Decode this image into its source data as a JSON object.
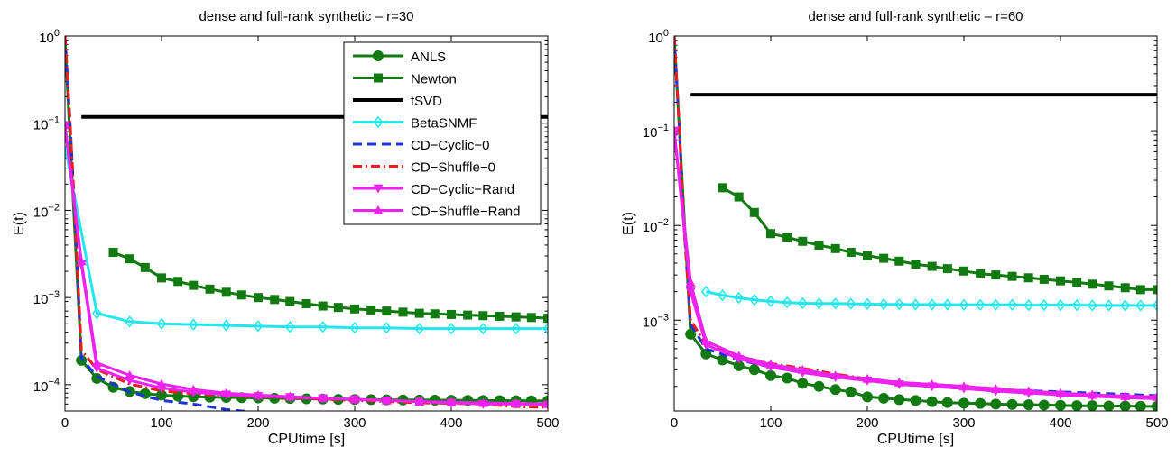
{
  "chart_data": [
    {
      "type": "line",
      "title": "dense and full-rank synthetic – r=30",
      "xlabel": "CPUtime [s]",
      "ylabel": "E(t)",
      "xlim": [
        0,
        500
      ],
      "ylim": [
        5e-05,
        1
      ],
      "yscale": "log",
      "x_ticks": [
        "0",
        "100",
        "200",
        "300",
        "400",
        "500"
      ],
      "y_ticks": [
        {
          "base": "10",
          "exp": "0"
        },
        {
          "base": "10",
          "exp": "−1"
        },
        {
          "base": "10",
          "exp": "−2"
        },
        {
          "base": "10",
          "exp": "−3"
        },
        {
          "base": "10",
          "exp": "−4"
        }
      ],
      "legend_position": "top-right",
      "series": [
        {
          "name": "ANLS",
          "x": [
            0,
            17,
            33,
            50,
            67,
            83,
            100,
            117,
            133,
            150,
            167,
            183,
            200,
            217,
            233,
            250,
            267,
            283,
            300,
            317,
            333,
            350,
            367,
            383,
            400,
            417,
            433,
            450,
            467,
            483,
            500
          ],
          "y": [
            0.9,
            0.00019,
            0.000118,
            9.35e-05,
            8.36e-05,
            7.9e-05,
            7.6e-05,
            7.4e-05,
            7.3e-05,
            7.2e-05,
            7.15e-05,
            7.1e-05,
            7.05e-05,
            7e-05,
            6.95e-05,
            6.9e-05,
            6.85e-05,
            6.8e-05,
            6.78e-05,
            6.75e-05,
            6.72e-05,
            6.7e-05,
            6.68e-05,
            6.66e-05,
            6.64e-05,
            6.62e-05,
            6.6e-05,
            6.58e-05,
            6.56e-05,
            6.54e-05,
            6.52e-05
          ]
        },
        {
          "name": "Newton",
          "x": [
            50,
            67,
            83,
            100,
            117,
            133,
            150,
            167,
            183,
            200,
            217,
            233,
            250,
            267,
            283,
            300,
            317,
            333,
            350,
            367,
            383,
            400,
            417,
            433,
            450,
            467,
            483,
            500
          ],
          "y": [
            0.0033,
            0.00278,
            0.00221,
            0.00168,
            0.00153,
            0.00138,
            0.00125,
            0.00115,
            0.00107,
            0.001,
            0.00095,
            0.0009,
            0.00085,
            0.0008,
            0.00077,
            0.00074,
            0.00072,
            0.0007,
            0.00068,
            0.00066,
            0.00065,
            0.00064,
            0.00063,
            0.00062,
            0.00061,
            0.0006,
            0.00059,
            0.00058
          ]
        },
        {
          "name": "tSVD",
          "x": [
            17,
            500
          ],
          "y": [
            0.118,
            0.118
          ]
        },
        {
          "name": "BetaSNMF",
          "x": [
            0,
            33,
            67,
            100,
            133,
            167,
            200,
            233,
            267,
            300,
            333,
            367,
            400,
            433,
            467,
            500
          ],
          "y": [
            0.055,
            0.00066,
            0.00053,
            0.0005,
            0.00049,
            0.00048,
            0.00047,
            0.00046,
            0.00046,
            0.00045,
            0.00045,
            0.00044,
            0.00044,
            0.00044,
            0.00044,
            0.00044
          ]
        },
        {
          "name": "CD−Cyclic−0",
          "x": [
            0,
            5,
            10,
            17,
            33,
            67,
            100,
            133,
            167,
            200,
            233,
            267,
            300,
            333,
            367,
            400,
            433,
            467,
            500
          ],
          "y": [
            1,
            0.12,
            0.01,
            0.0002,
            0.000125,
            8.25e-05,
            6.6e-05,
            6e-05,
            5.2e-05,
            4.8e-05,
            4.7e-05,
            3.9e-05,
            3.4e-05,
            3.4e-05,
            3.4e-05,
            3.4e-05,
            3.4e-05,
            3.4e-05,
            3.4e-05
          ]
        },
        {
          "name": "CD−Shuffle−0",
          "x": [
            0,
            5,
            10,
            17,
            33,
            67,
            100,
            133,
            167,
            200,
            233,
            267,
            300,
            333,
            367,
            400,
            433,
            467,
            500
          ],
          "y": [
            1,
            0.12,
            0.01,
            0.00025,
            0.00015,
            0.000102,
            8.5e-05,
            7.9e-05,
            7.5e-05,
            7.3e-05,
            7.1e-05,
            6.8e-05,
            6.6e-05,
            6.4e-05,
            6.2e-05,
            6.1e-05,
            6e-05,
            5.6e-05,
            5.5e-05
          ]
        },
        {
          "name": "CD−Cyclic−Rand",
          "x": [
            0,
            17,
            33,
            67,
            100,
            133,
            167,
            200,
            233,
            267,
            300,
            333,
            367,
            400,
            433,
            467,
            500
          ],
          "y": [
            0.095,
            0.0024,
            0.000155,
            0.000112,
            9.2e-05,
            8.2e-05,
            7.7e-05,
            7.4e-05,
            7.2e-05,
            7e-05,
            6.8e-05,
            6.6e-05,
            6.4e-05,
            6.2e-05,
            6e-05,
            6e-05,
            5.9e-05
          ]
        },
        {
          "name": "CD−Shuffle−Rand",
          "x": [
            0,
            17,
            33,
            67,
            100,
            133,
            167,
            200,
            233,
            267,
            300,
            333,
            367,
            400,
            433,
            467,
            500
          ],
          "y": [
            0.095,
            0.0026,
            0.000178,
            0.000128,
            0.000102,
            8.8e-05,
            8e-05,
            7.6e-05,
            7.3e-05,
            7e-05,
            6.8e-05,
            6.6e-05,
            6.4e-05,
            6.3e-05,
            6.2e-05,
            6.1e-05,
            6e-05
          ]
        }
      ]
    },
    {
      "type": "line",
      "title": "dense and full-rank synthetic – r=60",
      "xlabel": "CPUtime [s]",
      "ylabel": "E(t)",
      "xlim": [
        0,
        500
      ],
      "ylim": [
        0.00011,
        1
      ],
      "yscale": "log",
      "x_ticks": [
        "0",
        "100",
        "200",
        "300",
        "400",
        "500"
      ],
      "y_ticks": [
        {
          "base": "10",
          "exp": "0"
        },
        {
          "base": "10",
          "exp": "−1"
        },
        {
          "base": "10",
          "exp": "−2"
        },
        {
          "base": "10",
          "exp": "−3"
        }
      ],
      "series": [
        {
          "name": "ANLS",
          "x": [
            0,
            17,
            33,
            50,
            67,
            83,
            100,
            117,
            133,
            150,
            167,
            183,
            200,
            217,
            233,
            250,
            267,
            283,
            300,
            317,
            333,
            350,
            367,
            383,
            400,
            417,
            433,
            450,
            467,
            483,
            500
          ],
          "y": [
            1,
            0.00071,
            0.00044,
            0.00038,
            0.00033,
            0.0003,
            0.00026,
            0.000245,
            0.000215,
            0.0002,
            0.000185,
            0.000175,
            0.000155,
            0.00015,
            0.000145,
            0.000142,
            0.000138,
            0.000135,
            0.000133,
            0.000132,
            0.00013,
            0.000129,
            0.000128,
            0.000127,
            0.000126,
            0.000125,
            0.000125,
            0.000124,
            0.000124,
            0.000123,
            0.000123
          ]
        },
        {
          "name": "Newton",
          "x": [
            50,
            67,
            83,
            100,
            117,
            133,
            150,
            167,
            183,
            200,
            217,
            233,
            250,
            267,
            283,
            300,
            317,
            333,
            350,
            367,
            383,
            400,
            417,
            433,
            450,
            467,
            483,
            500
          ],
          "y": [
            0.025,
            0.02,
            0.0137,
            0.0082,
            0.0075,
            0.0068,
            0.0062,
            0.0057,
            0.0052,
            0.0048,
            0.0045,
            0.0042,
            0.0039,
            0.0037,
            0.0035,
            0.0033,
            0.0031,
            0.003,
            0.0029,
            0.0028,
            0.0027,
            0.0026,
            0.0025,
            0.0024,
            0.0023,
            0.0022,
            0.0021,
            0.0021
          ]
        },
        {
          "name": "tSVD",
          "x": [
            17,
            500
          ],
          "y": [
            0.24,
            0.24
          ]
        },
        {
          "name": "BetaSNMF",
          "x": [
            33,
            50,
            67,
            83,
            100,
            117,
            133,
            150,
            167,
            183,
            200,
            217,
            233,
            250,
            267,
            283,
            300,
            317,
            333,
            350,
            367,
            383,
            400,
            417,
            433,
            450,
            467,
            483,
            500
          ],
          "y": [
            0.002,
            0.00183,
            0.00172,
            0.00164,
            0.00158,
            0.00154,
            0.00151,
            0.0015,
            0.0015,
            0.00149,
            0.00148,
            0.00147,
            0.00147,
            0.00146,
            0.00146,
            0.00146,
            0.00145,
            0.00145,
            0.00145,
            0.00145,
            0.00144,
            0.00144,
            0.00144,
            0.00144,
            0.00143,
            0.00143,
            0.00143,
            0.00143,
            0.00143
          ]
        },
        {
          "name": "CD−Cyclic−0",
          "x": [
            0,
            5,
            10,
            17,
            33,
            67,
            100,
            133,
            167,
            200,
            233,
            267,
            300,
            333,
            367,
            400,
            433,
            467,
            500
          ],
          "y": [
            1,
            0.12,
            0.01,
            0.0009,
            0.0005,
            0.00038,
            0.00032,
            0.00028,
            0.00025,
            0.00023,
            0.00021,
            0.0002,
            0.00019,
            0.000185,
            0.00018,
            0.000175,
            0.00017,
            0.000165,
            0.00016
          ]
        },
        {
          "name": "CD−Shuffle−0",
          "x": [
            0,
            5,
            10,
            17,
            33,
            67,
            100,
            133,
            167,
            200,
            233,
            267,
            300,
            333,
            367,
            400,
            433,
            467,
            500
          ],
          "y": [
            1,
            0.12,
            0.01,
            0.001,
            0.00055,
            0.00041,
            0.00035,
            0.00031,
            0.00027,
            0.00024,
            0.00022,
            0.00021,
            0.0002,
            0.00019,
            0.000175,
            0.000165,
            0.00016,
            0.000155,
            0.000152
          ]
        },
        {
          "name": "CD−Cyclic−Rand",
          "x": [
            0,
            17,
            33,
            67,
            100,
            133,
            167,
            200,
            233,
            267,
            300,
            333,
            367,
            400,
            433,
            467,
            500
          ],
          "y": [
            0.1,
            0.002,
            0.00055,
            0.00039,
            0.00032,
            0.00028,
            0.00025,
            0.00023,
            0.00021,
            0.0002,
            0.00019,
            0.000178,
            0.00017,
            0.000163,
            0.000157,
            0.000152,
            0.000148
          ]
        },
        {
          "name": "CD−Shuffle−Rand",
          "x": [
            0,
            17,
            33,
            67,
            100,
            133,
            167,
            200,
            233,
            267,
            300,
            333,
            367,
            400,
            433,
            467,
            500
          ],
          "y": [
            0.1,
            0.0025,
            0.0006,
            0.00042,
            0.00034,
            0.0003,
            0.00026,
            0.00024,
            0.00022,
            0.00021,
            0.0002,
            0.000188,
            0.000178,
            0.00017,
            0.000163,
            0.000158,
            0.000155
          ]
        }
      ]
    }
  ],
  "style": {
    "colors": {
      "ANLS": "#117a11",
      "Newton": "#117a11",
      "tSVD": "#000000",
      "BetaSNMF": "#22e6ee",
      "CD−Cyclic−0": "#1f33dd",
      "CD−Shuffle−0": "#ee1c1c",
      "CD−Cyclic−Rand": "#ee22ee",
      "CD−Shuffle−Rand": "#ee22ee"
    },
    "markers": {
      "ANLS": "circle",
      "Newton": "square",
      "tSVD": "none",
      "BetaSNMF": "diamond",
      "CD−Cyclic−0": "none",
      "CD−Shuffle−0": "none",
      "CD−Cyclic−Rand": "triangle-down",
      "CD−Shuffle−Rand": "triangle-up"
    },
    "dashes": {
      "CD−Cyclic−0": "dashed",
      "CD−Shuffle−0": "dash-dot"
    }
  }
}
